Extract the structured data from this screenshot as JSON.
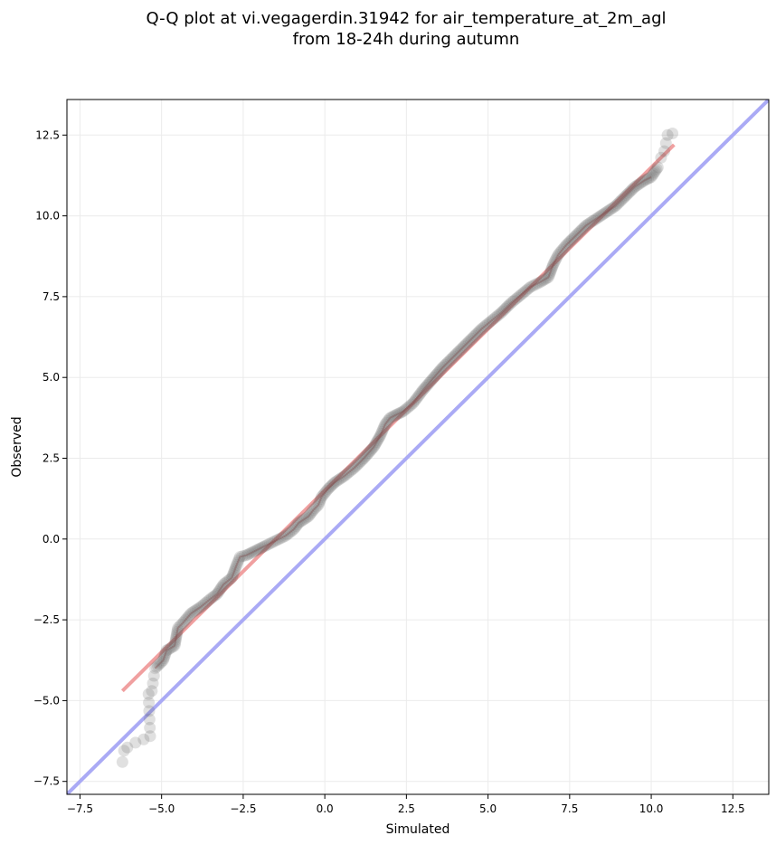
{
  "chart_data": {
    "type": "scatter",
    "title_line1": "Q-Q plot at vi.vegagerdin.31942 for air_temperature_at_2m_agl",
    "title_line2": "from 18-24h during autumn",
    "xlabel": "Simulated",
    "ylabel": "Observed",
    "xlim": [
      -7.9,
      13.6
    ],
    "ylim": [
      -7.9,
      13.6
    ],
    "xticks": [
      -7.5,
      -5.0,
      -2.5,
      0.0,
      2.5,
      5.0,
      7.5,
      10.0,
      12.5
    ],
    "yticks": [
      -7.5,
      -5.0,
      -2.5,
      0.0,
      2.5,
      5.0,
      7.5,
      10.0,
      12.5
    ],
    "xtick_labels": [
      "−7.5",
      "−5.0",
      "−2.5",
      "0.0",
      "2.5",
      "5.0",
      "7.5",
      "10.0",
      "12.5"
    ],
    "ytick_labels": [
      "−7.5",
      "−5.0",
      "−2.5",
      "0.0",
      "2.5",
      "5.0",
      "7.5",
      "10.0",
      "12.5"
    ],
    "grid": true,
    "point_color": "#555555",
    "identity_line": {
      "color": "#aaaaf5",
      "from": [
        -7.9,
        -7.9
      ],
      "to": [
        13.6,
        13.6
      ]
    },
    "fit_line": {
      "color": "#f0a0a0",
      "from": [
        -6.2,
        -4.7
      ],
      "to": [
        10.7,
        12.2
      ]
    },
    "quantile_path": [
      [
        -6.2,
        -6.9
      ],
      [
        -6.15,
        -6.55
      ],
      [
        -6.05,
        -6.45
      ],
      [
        -5.8,
        -6.3
      ],
      [
        -5.55,
        -6.2
      ],
      [
        -5.35,
        -6.1
      ],
      [
        -5.4,
        -4.8
      ],
      [
        -5.3,
        -4.7
      ],
      [
        -5.2,
        -4.0
      ],
      [
        -4.95,
        -3.75
      ],
      [
        -4.85,
        -3.45
      ],
      [
        -4.6,
        -3.3
      ],
      [
        -4.5,
        -2.75
      ],
      [
        -4.35,
        -2.6
      ],
      [
        -4.1,
        -2.3
      ],
      [
        -3.8,
        -2.1
      ],
      [
        -3.5,
        -1.85
      ],
      [
        -3.3,
        -1.7
      ],
      [
        -3.1,
        -1.4
      ],
      [
        -2.85,
        -1.2
      ],
      [
        -2.7,
        -0.8
      ],
      [
        -2.6,
        -0.55
      ],
      [
        -2.4,
        -0.5
      ],
      [
        -2.2,
        -0.4
      ],
      [
        -2.0,
        -0.3
      ],
      [
        -1.8,
        -0.2
      ],
      [
        -1.5,
        -0.05
      ],
      [
        -1.2,
        0.1
      ],
      [
        -0.95,
        0.3
      ],
      [
        -0.8,
        0.5
      ],
      [
        -0.5,
        0.7
      ],
      [
        -0.35,
        0.9
      ],
      [
        -0.2,
        1.05
      ],
      [
        -0.1,
        1.3
      ],
      [
        0.1,
        1.55
      ],
      [
        0.3,
        1.75
      ],
      [
        0.6,
        1.95
      ],
      [
        0.9,
        2.2
      ],
      [
        1.2,
        2.5
      ],
      [
        1.5,
        2.85
      ],
      [
        1.7,
        3.2
      ],
      [
        1.85,
        3.55
      ],
      [
        2.0,
        3.75
      ],
      [
        2.2,
        3.85
      ],
      [
        2.4,
        3.95
      ],
      [
        2.7,
        4.2
      ],
      [
        3.0,
        4.6
      ],
      [
        3.3,
        4.95
      ],
      [
        3.6,
        5.3
      ],
      [
        3.9,
        5.6
      ],
      [
        4.2,
        5.9
      ],
      [
        4.5,
        6.2
      ],
      [
        4.8,
        6.5
      ],
      [
        5.1,
        6.75
      ],
      [
        5.4,
        7.0
      ],
      [
        5.7,
        7.3
      ],
      [
        6.0,
        7.55
      ],
      [
        6.3,
        7.8
      ],
      [
        6.6,
        7.95
      ],
      [
        6.85,
        8.1
      ],
      [
        7.0,
        8.5
      ],
      [
        7.15,
        8.8
      ],
      [
        7.4,
        9.1
      ],
      [
        7.7,
        9.4
      ],
      [
        8.0,
        9.7
      ],
      [
        8.3,
        9.9
      ],
      [
        8.6,
        10.1
      ],
      [
        8.9,
        10.3
      ],
      [
        9.2,
        10.6
      ],
      [
        9.5,
        10.9
      ],
      [
        9.8,
        11.1
      ],
      [
        10.0,
        11.2
      ],
      [
        10.2,
        11.5
      ],
      [
        10.3,
        11.8
      ],
      [
        10.4,
        12.0
      ],
      [
        10.5,
        12.5
      ],
      [
        10.65,
        12.55
      ]
    ]
  }
}
